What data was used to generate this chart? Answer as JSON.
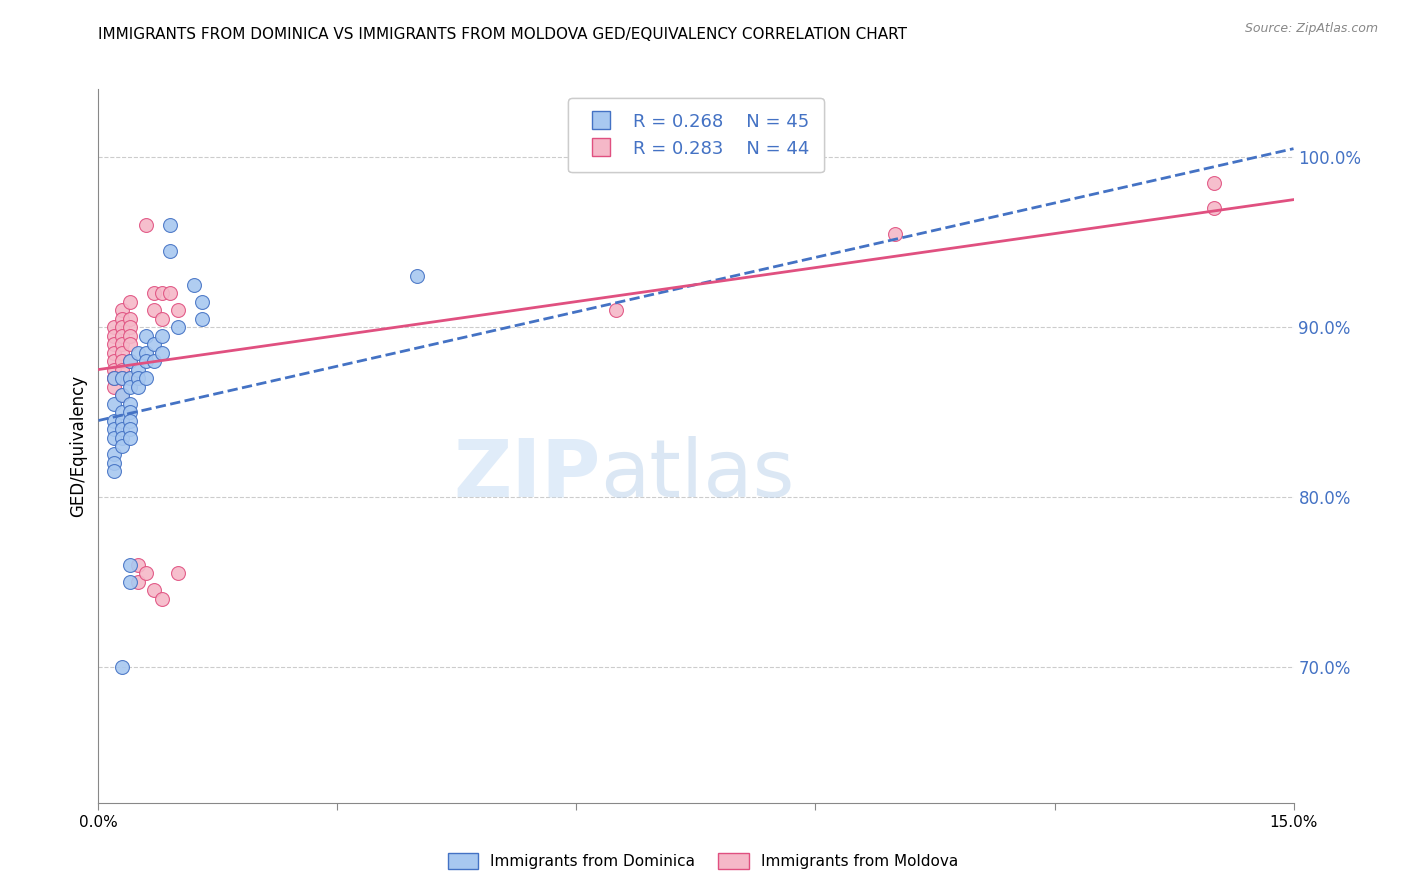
{
  "title": "IMMIGRANTS FROM DOMINICA VS IMMIGRANTS FROM MOLDOVA GED/EQUIVALENCY CORRELATION CHART",
  "source": "Source: ZipAtlas.com",
  "ylabel": "GED/Equivalency",
  "right_yticks": [
    "100.0%",
    "90.0%",
    "80.0%",
    "70.0%"
  ],
  "right_ytick_vals": [
    1.0,
    0.9,
    0.8,
    0.7
  ],
  "xmin": 0.0,
  "xmax": 0.15,
  "ymin": 0.62,
  "ymax": 1.04,
  "blue_color": "#a8c8f0",
  "pink_color": "#f5b8c8",
  "blue_line_color": "#4472c4",
  "pink_line_color": "#e05080",
  "blue_scatter": [
    [
      0.002,
      0.87
    ],
    [
      0.002,
      0.855
    ],
    [
      0.002,
      0.845
    ],
    [
      0.002,
      0.84
    ],
    [
      0.002,
      0.835
    ],
    [
      0.002,
      0.825
    ],
    [
      0.002,
      0.82
    ],
    [
      0.002,
      0.815
    ],
    [
      0.003,
      0.87
    ],
    [
      0.003,
      0.86
    ],
    [
      0.003,
      0.85
    ],
    [
      0.003,
      0.845
    ],
    [
      0.003,
      0.84
    ],
    [
      0.003,
      0.835
    ],
    [
      0.003,
      0.83
    ],
    [
      0.004,
      0.88
    ],
    [
      0.004,
      0.87
    ],
    [
      0.004,
      0.865
    ],
    [
      0.004,
      0.855
    ],
    [
      0.004,
      0.85
    ],
    [
      0.004,
      0.845
    ],
    [
      0.004,
      0.84
    ],
    [
      0.004,
      0.835
    ],
    [
      0.005,
      0.885
    ],
    [
      0.005,
      0.875
    ],
    [
      0.005,
      0.87
    ],
    [
      0.005,
      0.865
    ],
    [
      0.006,
      0.895
    ],
    [
      0.006,
      0.885
    ],
    [
      0.006,
      0.88
    ],
    [
      0.006,
      0.87
    ],
    [
      0.007,
      0.89
    ],
    [
      0.007,
      0.88
    ],
    [
      0.008,
      0.895
    ],
    [
      0.008,
      0.885
    ],
    [
      0.009,
      0.96
    ],
    [
      0.009,
      0.945
    ],
    [
      0.01,
      0.9
    ],
    [
      0.012,
      0.925
    ],
    [
      0.013,
      0.915
    ],
    [
      0.013,
      0.905
    ],
    [
      0.04,
      0.93
    ],
    [
      0.004,
      0.76
    ],
    [
      0.004,
      0.75
    ],
    [
      0.003,
      0.7
    ]
  ],
  "pink_scatter": [
    [
      0.002,
      0.9
    ],
    [
      0.002,
      0.895
    ],
    [
      0.002,
      0.89
    ],
    [
      0.002,
      0.885
    ],
    [
      0.002,
      0.88
    ],
    [
      0.002,
      0.875
    ],
    [
      0.002,
      0.87
    ],
    [
      0.002,
      0.865
    ],
    [
      0.003,
      0.91
    ],
    [
      0.003,
      0.905
    ],
    [
      0.003,
      0.9
    ],
    [
      0.003,
      0.895
    ],
    [
      0.003,
      0.89
    ],
    [
      0.003,
      0.885
    ],
    [
      0.003,
      0.88
    ],
    [
      0.003,
      0.875
    ],
    [
      0.004,
      0.915
    ],
    [
      0.004,
      0.905
    ],
    [
      0.004,
      0.9
    ],
    [
      0.004,
      0.895
    ],
    [
      0.004,
      0.89
    ],
    [
      0.006,
      0.96
    ],
    [
      0.007,
      0.92
    ],
    [
      0.007,
      0.91
    ],
    [
      0.008,
      0.92
    ],
    [
      0.008,
      0.905
    ],
    [
      0.009,
      0.92
    ],
    [
      0.005,
      0.76
    ],
    [
      0.005,
      0.75
    ],
    [
      0.006,
      0.755
    ],
    [
      0.007,
      0.745
    ],
    [
      0.008,
      0.74
    ],
    [
      0.01,
      0.755
    ],
    [
      0.065,
      0.91
    ],
    [
      0.01,
      0.91
    ],
    [
      0.1,
      0.955
    ],
    [
      0.14,
      0.985
    ],
    [
      0.14,
      0.97
    ],
    [
      0.002,
      0.87
    ],
    [
      0.003,
      0.86
    ],
    [
      0.003,
      0.87
    ],
    [
      0.004,
      0.88
    ],
    [
      0.004,
      0.87
    ]
  ]
}
